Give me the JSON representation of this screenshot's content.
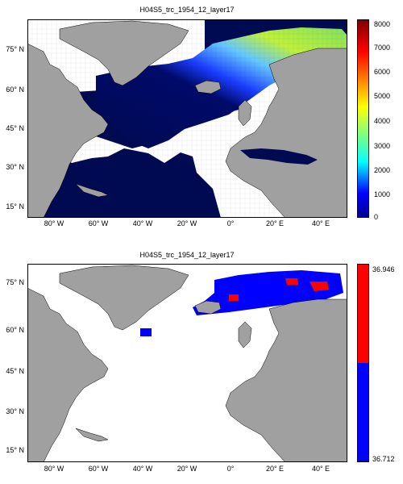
{
  "panel_top": {
    "title": "H04S5_trc_1954_12_layer17",
    "lat_labels": [
      "75° N",
      "60° N",
      "45° N",
      "30° N",
      "15° N"
    ],
    "lon_labels": [
      "80° W",
      "60° W",
      "40° W",
      "20° W",
      "0°",
      "20° E",
      "40° E"
    ],
    "colorbar": {
      "ticks": [
        "8000",
        "7000",
        "6000",
        "5000",
        "4000",
        "3000",
        "2000",
        "1000",
        "0"
      ],
      "min": 0,
      "max": 8000,
      "colormap": "jet"
    }
  },
  "panel_bottom": {
    "title": "H04S5_trc_1954_12_layer17",
    "lat_labels": [
      "75° N",
      "60° N",
      "45° N",
      "30° N",
      "15° N"
    ],
    "lon_labels": [
      "80° W",
      "60° W",
      "40° W",
      "20° W",
      "0°",
      "20° E",
      "40° E"
    ],
    "colorbar": {
      "ticks": [
        "36.946",
        "36.712"
      ],
      "min": 36.712,
      "max": 36.946,
      "colors": [
        "#ff0000",
        "#0000ff"
      ]
    }
  },
  "colors": {
    "land": "#a0a0a0",
    "ocean_deep": "#000a52",
    "missing": "#ffffff",
    "red": "#ff0000",
    "blue": "#0000ff"
  }
}
